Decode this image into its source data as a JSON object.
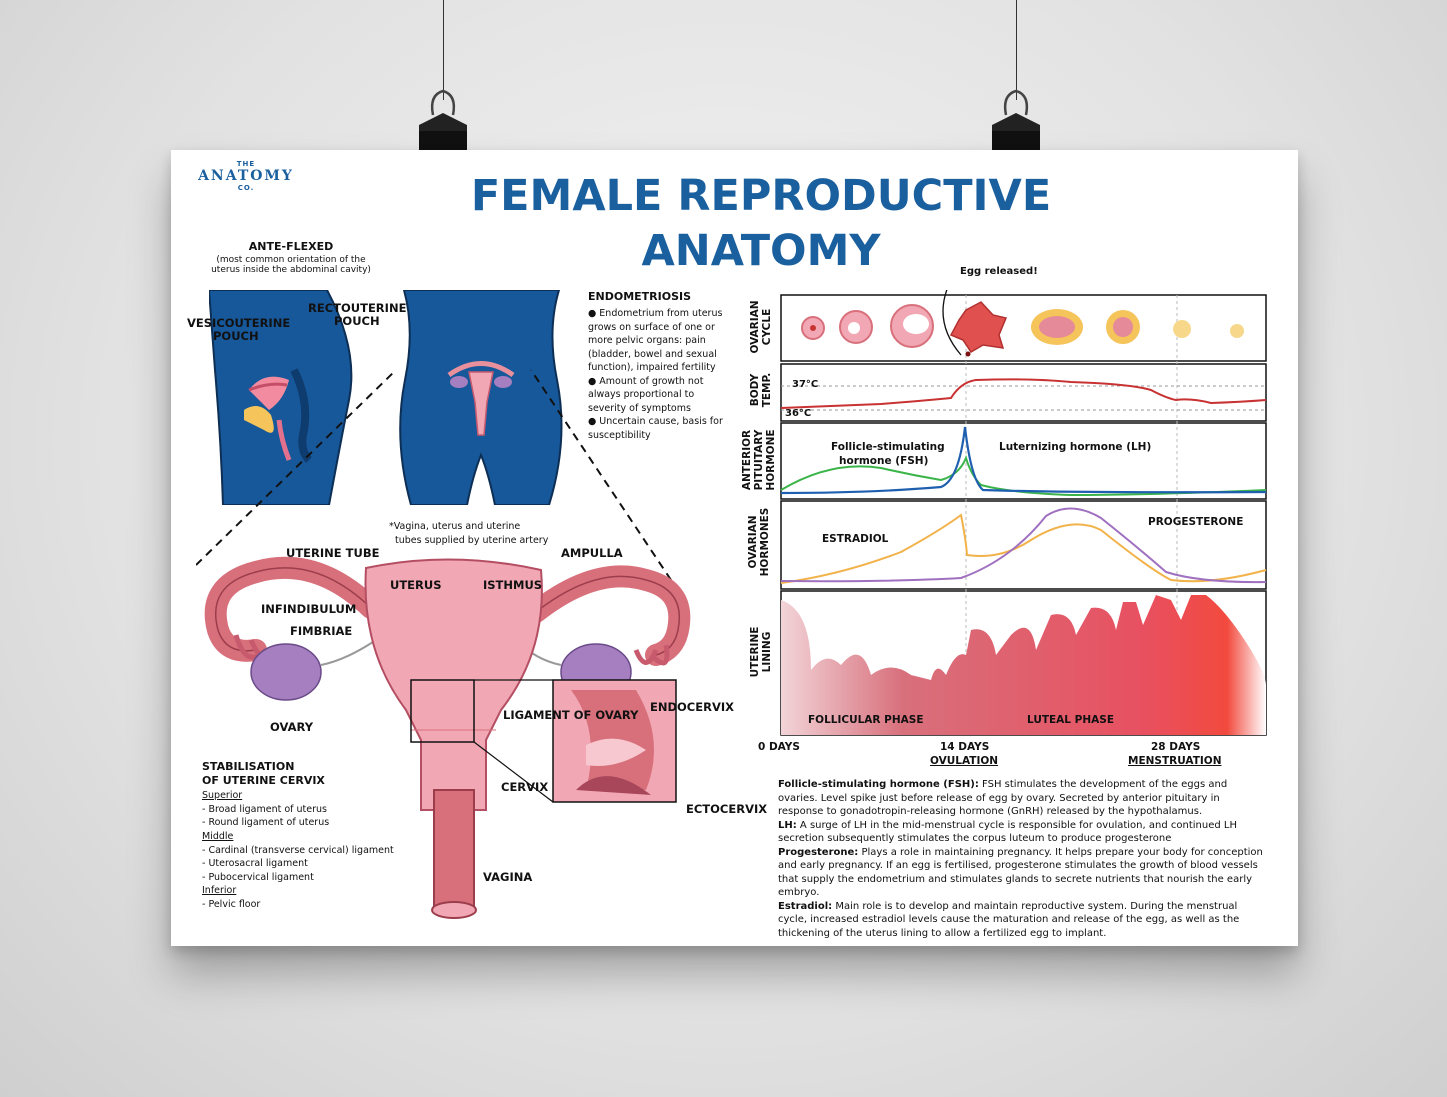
{
  "logo": {
    "top": "THE",
    "name": "ANATOMY",
    "bottom": "CO."
  },
  "title": {
    "line1": "FEMALE REPRODUCTIVE",
    "line2": "ANATOMY"
  },
  "anteflexed": {
    "heading": "ANTE-FLEXED",
    "sub1": "(most common orientation of the",
    "sub2": "uterus inside the abdominal cavity)"
  },
  "pouch_labels": {
    "vesico1": "VESICOUTERINE",
    "vesico2": "POUCH",
    "recto1": "RECTOUTERINE",
    "recto2": "POUCH"
  },
  "endometriosis": {
    "heading": "ENDOMETRIOSIS",
    "lines": [
      "●  Endometrium from uterus",
      "grows on surface of one or",
      "more pelvic organs: pain",
      "(bladder, bowel and sexual",
      "function), impaired fertility",
      "● Amount of growth not",
      "always proportional to",
      "severity of symptoms",
      "● Uncertain cause, basis for",
      "susceptibility"
    ]
  },
  "artery_note": {
    "line1": "*Vagina, uterus and uterine",
    "line2": "tubes supplied by uterine artery"
  },
  "anatomy_labels": {
    "uterine_tube": "UTERINE TUBE",
    "ampulla": "AMPULLA",
    "uterus": "UTERUS",
    "isthmus": "ISTHMUS",
    "infindibulum": "INFINDIBULUM",
    "fimbriae": "FIMBRIAE",
    "ovary": "OVARY",
    "ligament": "LIGAMENT OF OVARY",
    "endocervix": "ENDOCERVIX",
    "cervix": "CERVIX",
    "ectocervix": "ECTOCERVIX",
    "vagina": "VAGINA"
  },
  "stabilisation": {
    "heading1": "STABILISATION",
    "heading2": "OF UTERINE CERVIX",
    "superior": "Superior",
    "sup1": "- Broad ligament of uterus",
    "sup2": "- Round ligament of uterus",
    "middle": "Middle",
    "mid1": "- Cardinal (transverse cervical) ligament",
    "mid2": "- Uterosacral ligament",
    "mid3": "- Pubocervical ligament",
    "inferior": "Inferior",
    "inf1": "- Pelvic floor"
  },
  "cycle_chart": {
    "egg_released": "Egg released!",
    "row_labels": {
      "ovarian1": "OVARIAN",
      "ovarian2": "CYCLE",
      "temp1": "BODY",
      "temp2": "TEMP.",
      "pit1": "ANTERIOR",
      "pit2": "PITUITARY",
      "pit3": "HORMONE",
      "ovh1": "OVARIAN",
      "ovh2": "HORMONES",
      "ul1": "UTERINE",
      "ul2": "LINING"
    },
    "temp_high": "37°C",
    "temp_low": "36°C",
    "fsh1": "Follicle-stimulating",
    "fsh2": "hormone (FSH)",
    "lh": "Luternizing hormone (LH)",
    "estradiol": "ESTRADIOL",
    "progesterone": "PROGESTERONE",
    "follicular": "FOLLICULAR PHASE",
    "luteal": "LUTEAL PHASE",
    "day0": "0 DAYS",
    "day14": "14 DAYS",
    "ovulation": "OVULATION",
    "day28": "28 DAYS",
    "menstruation": "MENSTRUATION"
  },
  "definitions": {
    "fsh_t": "Follicle-stimulating hormone (FSH):",
    "fsh_b": " FSH stimulates the development of the eggs and ovaries. Level spike just before release of egg by ovary. Secreted by anterior pituitary in response to gonadotropin-releasing hormone (GnRH) released by the hypothalamus.",
    "lh_t": "LH:",
    "lh_b": " A surge of LH in the mid-menstrual cycle is responsible for ovulation, and continued LH secretion subsequently stimulates the corpus luteum to produce progesterone",
    "pr_t": "Progesterone:",
    "pr_b": " Plays a role in maintaining pregnancy. It helps prepare your body for conception and early pregnancy. If an egg is fertilised, progesterone stimulates the growth of blood vessels that supply the endometrium and stimulates glands to secrete nutrients that nourish the early embryo.",
    "es_t": "Estradiol:",
    "es_b": " Main role is to develop and maintain reproductive system. During the menstrual cycle, increased estradiol levels cause the maturation and release of the egg, as well as the thickening of the uterus lining to allow a fertilized egg to implant."
  },
  "colors": {
    "title_blue": "#1a5f9e",
    "body_blue": "#17589b",
    "uterus_pink": "#f2a8b4",
    "tube_rose": "#d8707c",
    "ovary_purple": "#a57fbf",
    "fsh_green": "#3bb54a",
    "lh_blue": "#1f5fb0",
    "estradiol_orange": "#f2b24a",
    "progesterone_purple": "#a070c0",
    "temp_red": "#c83232"
  }
}
